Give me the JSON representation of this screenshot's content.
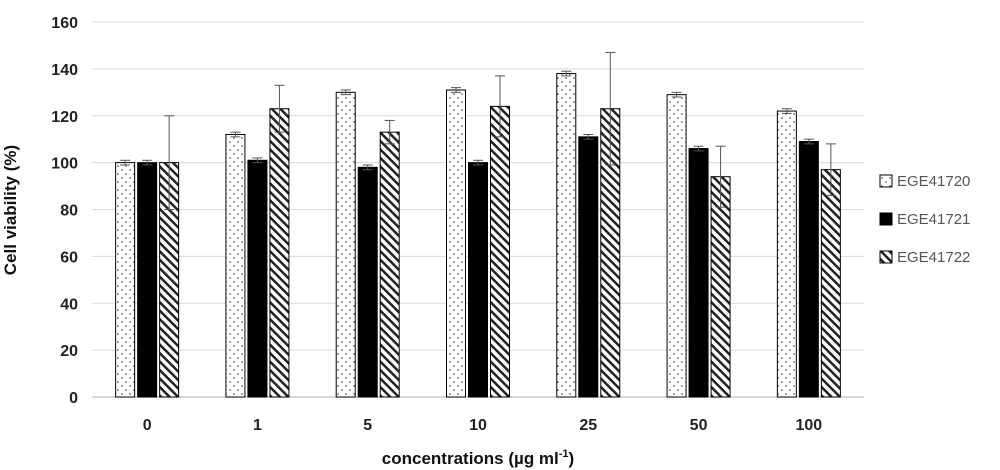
{
  "chart_data": {
    "type": "bar",
    "categories": [
      "0",
      "1",
      "5",
      "10",
      "25",
      "50",
      "100"
    ],
    "series": [
      {
        "name": "EGE41720",
        "values": [
          100,
          112,
          130,
          131,
          138,
          129,
          122
        ],
        "errors": [
          1,
          1,
          1,
          1,
          1,
          1,
          1
        ],
        "pattern": "dots"
      },
      {
        "name": "EGE41721",
        "values": [
          100,
          101,
          98,
          100,
          111,
          106,
          109
        ],
        "errors": [
          1,
          1,
          1,
          1,
          1,
          1,
          1
        ],
        "pattern": "solid"
      },
      {
        "name": "EGE41722",
        "values": [
          100,
          123,
          113,
          124,
          123,
          94,
          97
        ],
        "errors": [
          20,
          10,
          5,
          13,
          24,
          13,
          11
        ],
        "pattern": "hatch"
      }
    ],
    "xlabel": "concentrations (µg ml",
    "xlabel_sup": "-1",
    "xlabel_end": ")",
    "ylabel": "Cell viability (%)",
    "ylim": [
      0,
      160
    ],
    "yticks": [
      "0",
      "20",
      "40",
      "60",
      "80",
      "100",
      "120",
      "140",
      "160"
    ],
    "grid": "horizontal",
    "legend": "right"
  }
}
